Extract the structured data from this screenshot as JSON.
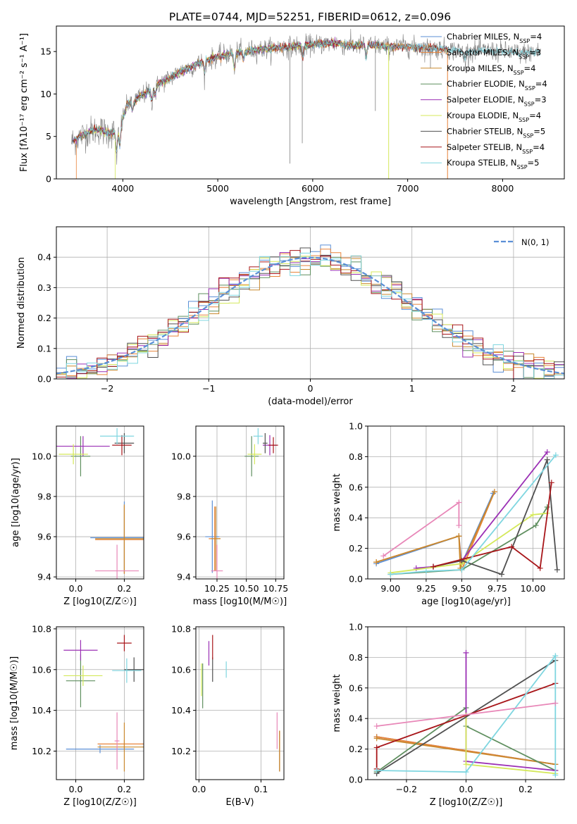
{
  "figure_title": "PLATE=0744, MJD=52251, FIBERID=0612, z=0.096",
  "colors": {
    "chabrier_miles": "#5b8fd6",
    "salpeter_miles": "#e8843a",
    "kroupa_miles": "#c9892f",
    "chabrier_elodie": "#5f8f5f",
    "salpeter_elodie": "#9b30b5",
    "kroupa_elodie": "#d4e85a",
    "chabrier_stelib": "#505050",
    "salpeter_stelib": "#a8161a",
    "kroupa_stelib": "#7fd6e0",
    "data_gray": "#808080",
    "normal_fit": "#5b8fd6",
    "pink_extra": "#e887b8"
  },
  "chart_data": [
    {
      "id": "spectrum",
      "type": "line",
      "xlabel": "wavelength [Angstrom, rest frame]",
      "ylabel": "Flux [fλ10⁻¹⁷ erg cm⁻² s⁻¹ A⁻¹]",
      "xlim": [
        3300,
        8650
      ],
      "ylim": [
        0,
        18
      ],
      "xticks": [
        "4000",
        "5000",
        "6000",
        "7000",
        "8000"
      ],
      "yticks": [
        "0",
        "5",
        "10",
        "15"
      ],
      "legend_position": "top-right",
      "legend": [
        "Chabrier MILES, N_SSP=4",
        "Salpeter MILES, N_SSP=3",
        "Kroupa MILES, N_SSP=4",
        "Chabrier ELODIE, N_SSP=4",
        "Salpeter ELODIE, N_SSP=3",
        "Kroupa ELODIE, N_SSP=4",
        "Chabrier STELIB, N_SSP=5",
        "Salpeter STELIB, N_SSP=4",
        "Kroupa STELIB, N_SSP=5"
      ],
      "continuum": {
        "x": [
          3450,
          3550,
          3650,
          3750,
          3850,
          3950,
          4050,
          4200,
          4400,
          4600,
          4800,
          5000,
          5200,
          5400,
          5600,
          5800,
          6000,
          6200,
          6400,
          6600,
          6800,
          7000,
          7200,
          7400,
          7600,
          7800,
          8000,
          8200,
          8400
        ],
        "y": [
          4.3,
          5.0,
          5.6,
          5.8,
          5.4,
          5.5,
          8.8,
          9.8,
          11.3,
          12.6,
          13.6,
          14.4,
          14.9,
          15.2,
          15.4,
          15.6,
          15.8,
          16.0,
          15.7,
          15.8,
          15.5,
          15.6,
          15.4,
          15.3,
          15.0,
          15.1,
          15.0,
          14.8,
          15.0
        ]
      }
    },
    {
      "id": "residuals",
      "type": "line",
      "xlabel": "(data-model)/error",
      "ylabel": "Normed distribution",
      "xlim": [
        -2.5,
        2.5
      ],
      "ylim": [
        0,
        0.5
      ],
      "xticks": [
        "−2",
        "−1",
        "0",
        "1",
        "2"
      ],
      "yticks": [
        "0.0",
        "0.1",
        "0.2",
        "0.3",
        "0.4"
      ],
      "grid": true,
      "legend_position": "top-right",
      "legend": [
        "N(0, 1)"
      ],
      "normal": {
        "mean": 0,
        "sigma": 1
      }
    },
    {
      "id": "age_vs_Z",
      "type": "scatter",
      "xlabel": "Z [log10(Z/Z☉)]",
      "ylabel": "age  [log10(age/yr)]",
      "xlim": [
        -0.08,
        0.28
      ],
      "ylim": [
        9.39,
        10.15
      ],
      "xticks": [
        "0.0",
        "0.2"
      ],
      "yticks": [
        "9.4",
        "9.6",
        "9.8",
        "10.0"
      ],
      "grid": true,
      "points": [
        {
          "m": "chabrier_miles",
          "x": 0.2,
          "y": 9.595,
          "xe": 0.14,
          "ye": 0.18
        },
        {
          "m": "salpeter_miles",
          "x": 0.2,
          "y": 9.585,
          "xe": 0.12,
          "ye": 0.17
        },
        {
          "m": "kroupa_miles",
          "x": 0.2,
          "y": 9.59,
          "xe": 0.12,
          "ye": 0.17
        },
        {
          "m": "chabrier_elodie",
          "x": 0.02,
          "y": 10.0,
          "xe": 0.04,
          "ye": 0.1
        },
        {
          "m": "salpeter_elodie",
          "x": 0.03,
          "y": 10.05,
          "xe": 0.11,
          "ye": 0.05
        },
        {
          "m": "kroupa_elodie",
          "x": -0.01,
          "y": 10.01,
          "xe": 0.06,
          "ye": 0.05
        },
        {
          "m": "chabrier_stelib",
          "x": 0.2,
          "y": 10.065,
          "xe": 0.04,
          "ye": 0.05
        },
        {
          "m": "salpeter_stelib",
          "x": 0.19,
          "y": 10.055,
          "xe": 0.04,
          "ye": 0.05
        },
        {
          "m": "kroupa_stelib",
          "x": 0.17,
          "y": 10.1,
          "xe": 0.07,
          "ye": 0.04
        },
        {
          "m": "pink_extra",
          "x": 0.17,
          "y": 9.43,
          "xe": 0.09,
          "ye": 0.13
        }
      ]
    },
    {
      "id": "age_vs_mass",
      "type": "scatter",
      "xlabel": "mass [log10(M/M☉)]",
      "ylabel": "",
      "xlim": [
        10.07,
        10.82
      ],
      "ylim": [
        9.39,
        10.15
      ],
      "xticks": [
        "10.25",
        "10.50",
        "10.75"
      ],
      "yticks": [
        "9.4",
        "9.6",
        "9.8",
        "10.0"
      ],
      "grid": true,
      "points": [
        {
          "m": "chabrier_miles",
          "x": 10.21,
          "y": 9.6,
          "xe": 0.06,
          "ye": 0.18
        },
        {
          "m": "salpeter_miles",
          "x": 10.23,
          "y": 9.59,
          "xe": 0.05,
          "ye": 0.16
        },
        {
          "m": "kroupa_miles",
          "x": 10.24,
          "y": 9.59,
          "xe": 0.04,
          "ye": 0.16
        },
        {
          "m": "chabrier_elodie",
          "x": 10.545,
          "y": 10.0,
          "xe": 0.06,
          "ye": 0.1
        },
        {
          "m": "salpeter_elodie",
          "x": 10.7,
          "y": 10.055,
          "xe": 0.06,
          "ye": 0.05
        },
        {
          "m": "kroupa_elodie",
          "x": 10.57,
          "y": 10.01,
          "xe": 0.06,
          "ye": 0.05
        },
        {
          "m": "chabrier_stelib",
          "x": 10.66,
          "y": 10.065,
          "xe": 0.02,
          "ye": 0.05
        },
        {
          "m": "salpeter_stelib",
          "x": 10.73,
          "y": 10.055,
          "xe": 0.04,
          "ye": 0.04
        },
        {
          "m": "kroupa_stelib",
          "x": 10.6,
          "y": 10.1,
          "xe": 0.04,
          "ye": 0.04
        },
        {
          "m": "pink_extra",
          "x": 10.25,
          "y": 9.43,
          "xe": 0.05,
          "ye": 0.13
        }
      ]
    },
    {
      "id": "weight_vs_age",
      "type": "line",
      "xlabel": "age  [log10(age/yr)]",
      "ylabel": "mass weight",
      "xlim": [
        8.84,
        10.22
      ],
      "ylim": [
        0,
        1
      ],
      "xticks": [
        "9.00",
        "9.25",
        "9.50",
        "9.75",
        "10.00"
      ],
      "yticks": [
        "0.0",
        "0.2",
        "0.4",
        "0.6",
        "0.8",
        "1.0"
      ],
      "grid": true,
      "series": [
        {
          "m": "chabrier_miles",
          "x": [
            8.9,
            9.48,
            9.5,
            9.72
          ],
          "y": [
            0.1,
            0.28,
            0.1,
            0.56
          ]
        },
        {
          "m": "salpeter_miles",
          "x": [
            8.9,
            9.48,
            9.5,
            9.73
          ],
          "y": [
            0.11,
            0.28,
            0.06,
            0.57
          ]
        },
        {
          "m": "kroupa_miles",
          "x": [
            8.9,
            9.48,
            9.49,
            9.73
          ],
          "y": [
            0.11,
            0.28,
            0.07,
            0.57
          ]
        },
        {
          "m": "chabrier_elodie",
          "x": [
            9.0,
            9.5,
            10.02,
            10.1
          ],
          "y": [
            0.03,
            0.06,
            0.35,
            0.47
          ]
        },
        {
          "m": "salpeter_elodie",
          "x": [
            9.18,
            9.3,
            9.5,
            10.1
          ],
          "y": [
            0.07,
            0.08,
            0.12,
            0.83
          ]
        },
        {
          "m": "kroupa_elodie",
          "x": [
            9.0,
            9.5,
            10.0,
            10.1
          ],
          "y": [
            0.04,
            0.1,
            0.42,
            0.43
          ]
        },
        {
          "m": "chabrier_stelib",
          "x": [
            9.3,
            9.5,
            9.78,
            10.1,
            10.17
          ],
          "y": [
            0.08,
            0.12,
            0.03,
            0.78,
            0.06
          ]
        },
        {
          "m": "salpeter_stelib",
          "x": [
            9.3,
            9.85,
            10.05,
            10.13
          ],
          "y": [
            0.08,
            0.21,
            0.07,
            0.63
          ]
        },
        {
          "m": "kroupa_stelib",
          "x": [
            9.0,
            9.25,
            9.5,
            10.16
          ],
          "y": [
            0.03,
            0.05,
            0.06,
            0.81
          ]
        },
        {
          "m": "pink_extra",
          "x": [
            8.95,
            9.48,
            9.48
          ],
          "y": [
            0.15,
            0.5,
            0.35
          ]
        }
      ]
    },
    {
      "id": "mass_vs_Z",
      "type": "scatter",
      "xlabel": "Z [log10(Z/Z☉)]",
      "ylabel": "mass [log10(M/M☉)]",
      "xlim": [
        -0.08,
        0.28
      ],
      "ylim": [
        10.06,
        10.81
      ],
      "xticks": [
        "0.0",
        "0.2"
      ],
      "yticks": [
        "10.2",
        "10.4",
        "10.6",
        "10.8"
      ],
      "grid": true,
      "points": [
        {
          "m": "chabrier_miles",
          "x": 0.1,
          "y": 10.21,
          "xe": 0.14,
          "ye": 0.02
        },
        {
          "m": "salpeter_miles",
          "x": 0.2,
          "y": 10.235,
          "xe": 0.11,
          "ye": 0.02
        },
        {
          "m": "kroupa_miles",
          "x": 0.2,
          "y": 10.22,
          "xe": 0.11,
          "ye": 0.12
        },
        {
          "m": "chabrier_elodie",
          "x": 0.02,
          "y": 10.545,
          "xe": 0.06,
          "ye": 0.13
        },
        {
          "m": "salpeter_elodie",
          "x": 0.02,
          "y": 10.695,
          "xe": 0.07,
          "ye": 0.05
        },
        {
          "m": "kroupa_elodie",
          "x": 0.03,
          "y": 10.57,
          "xe": 0.08,
          "ye": 0.05
        },
        {
          "m": "chabrier_stelib",
          "x": 0.24,
          "y": 10.6,
          "xe": 0.04,
          "ye": 0.06
        },
        {
          "m": "salpeter_stelib",
          "x": 0.2,
          "y": 10.73,
          "xe": 0.03,
          "ye": 0.04
        },
        {
          "m": "kroupa_stelib",
          "x": 0.21,
          "y": 10.595,
          "xe": 0.06,
          "ye": 0.06
        },
        {
          "m": "pink_extra",
          "x": 0.17,
          "y": 10.25,
          "xe": 0.01,
          "ye": 0.14
        }
      ]
    },
    {
      "id": "mass_vs_ebv",
      "type": "scatter",
      "xlabel": "E(B-V)",
      "ylabel": "",
      "xlim": [
        -0.005,
        0.137
      ],
      "ylim": [
        10.06,
        10.81
      ],
      "xticks": [
        "0.0",
        "0.1"
      ],
      "yticks": [
        "10.2",
        "10.4",
        "10.6",
        "10.8"
      ],
      "grid": true,
      "points": [
        {
          "m": "chabrier_miles",
          "x": 0.13,
          "y": 10.2,
          "xe": 0,
          "ye": 0.1
        },
        {
          "m": "salpeter_miles",
          "x": 0.13,
          "y": 10.2,
          "xe": 0,
          "ye": 0.1
        },
        {
          "m": "kroupa_miles",
          "x": 0.13,
          "y": 10.2,
          "xe": 0,
          "ye": 0.1
        },
        {
          "m": "chabrier_elodie",
          "x": 0.006,
          "y": 10.52,
          "xe": 0,
          "ye": 0.11
        },
        {
          "m": "salpeter_elodie",
          "x": 0.016,
          "y": 10.68,
          "xe": 0,
          "ye": 0.06
        },
        {
          "m": "kroupa_elodie",
          "x": 0.004,
          "y": 10.55,
          "xe": 0,
          "ye": 0.08
        },
        {
          "m": "chabrier_stelib",
          "x": 0.022,
          "y": 10.6,
          "xe": 0,
          "ye": 0.06
        },
        {
          "m": "salpeter_stelib",
          "x": 0.022,
          "y": 10.71,
          "xe": 0,
          "ye": 0.06
        },
        {
          "m": "kroupa_stelib",
          "x": 0.044,
          "y": 10.6,
          "xe": 0,
          "ye": 0.04
        },
        {
          "m": "pink_extra",
          "x": 0.126,
          "y": 10.3,
          "xe": 0,
          "ye": 0.09
        }
      ]
    },
    {
      "id": "weight_vs_Z",
      "type": "line",
      "xlabel": "Z [log10(Z/Z☉)]",
      "ylabel": "mass weight",
      "xlim": [
        -0.33,
        0.33
      ],
      "ylim": [
        0,
        1
      ],
      "xticks": [
        "−0.2",
        "0.0",
        "0.2"
      ],
      "yticks": [
        "0.0",
        "0.2",
        "0.4",
        "0.6",
        "0.8",
        "1.0"
      ],
      "grid": true,
      "series": [
        {
          "m": "chabrier_miles",
          "x": [
            -0.3,
            0.3
          ],
          "y": [
            0.28,
            0.1
          ]
        },
        {
          "m": "salpeter_miles",
          "x": [
            -0.3,
            0.3
          ],
          "y": [
            0.28,
            0.1
          ]
        },
        {
          "m": "kroupa_miles",
          "x": [
            -0.3,
            0.3
          ],
          "y": [
            0.27,
            0.1
          ]
        },
        {
          "m": "chabrier_elodie",
          "x": [
            -0.3,
            0.0,
            0.0,
            0.3
          ],
          "y": [
            0.05,
            0.47,
            0.35,
            0.06
          ]
        },
        {
          "m": "salpeter_elodie",
          "x": [
            0.0,
            0.0,
            0.3
          ],
          "y": [
            0.83,
            0.12,
            0.06
          ]
        },
        {
          "m": "kroupa_elodie",
          "x": [
            0.0,
            0.0,
            0.3
          ],
          "y": [
            0.42,
            0.1,
            0.04
          ]
        },
        {
          "m": "chabrier_stelib",
          "x": [
            -0.3,
            0.3
          ],
          "y": [
            0.04,
            0.78
          ]
        },
        {
          "m": "salpeter_stelib",
          "x": [
            -0.3,
            -0.3,
            0.3
          ],
          "y": [
            0.07,
            0.21,
            0.63
          ]
        },
        {
          "m": "kroupa_stelib",
          "x": [
            -0.3,
            0.0,
            0.3,
            0.3
          ],
          "y": [
            0.06,
            0.05,
            0.81,
            0.03
          ]
        },
        {
          "m": "pink_extra",
          "x": [
            -0.3,
            0.3
          ],
          "y": [
            0.35,
            0.5
          ]
        }
      ]
    }
  ]
}
